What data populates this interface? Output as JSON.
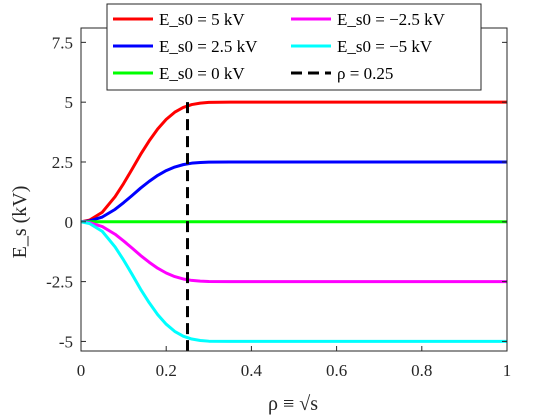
{
  "chart_data": {
    "type": "line",
    "xlabel": "ρ ≡ √s",
    "ylabel": "E_s (kV)",
    "xlim": [
      0,
      1
    ],
    "ylim": [
      -5.4,
      8.1
    ],
    "xticks": [
      0,
      0.2,
      0.4,
      0.6,
      0.8,
      1
    ],
    "xtick_labels": [
      "0",
      "0.2",
      "0.4",
      "0.6",
      "0.8",
      "1"
    ],
    "yticks": [
      -5,
      -2.5,
      0,
      2.5,
      5,
      7.5
    ],
    "ytick_labels": [
      "-5",
      "-2.5",
      "0",
      "2.5",
      "5",
      "7.5"
    ],
    "grid": false,
    "legend_placement": "top",
    "series": [
      {
        "name": "E_s0 = 5 kV",
        "color": "#ff0000",
        "values": [
          [
            0,
            0
          ],
          [
            0.02,
            0.07
          ],
          [
            0.05,
            0.4
          ],
          [
            0.08,
            1.05
          ],
          [
            0.1,
            1.6
          ],
          [
            0.12,
            2.2
          ],
          [
            0.14,
            2.82
          ],
          [
            0.16,
            3.38
          ],
          [
            0.18,
            3.88
          ],
          [
            0.2,
            4.28
          ],
          [
            0.22,
            4.58
          ],
          [
            0.24,
            4.78
          ],
          [
            0.26,
            4.9
          ],
          [
            0.28,
            4.96
          ],
          [
            0.3,
            4.99
          ],
          [
            0.35,
            5
          ],
          [
            1,
            5
          ]
        ]
      },
      {
        "name": "E_s0 = 2.5 kV",
        "color": "#0000ff",
        "values": [
          [
            0,
            0
          ],
          [
            0.02,
            0.035
          ],
          [
            0.05,
            0.2
          ],
          [
            0.08,
            0.52
          ],
          [
            0.1,
            0.8
          ],
          [
            0.12,
            1.1
          ],
          [
            0.14,
            1.41
          ],
          [
            0.16,
            1.69
          ],
          [
            0.18,
            1.94
          ],
          [
            0.2,
            2.14
          ],
          [
            0.22,
            2.29
          ],
          [
            0.24,
            2.39
          ],
          [
            0.26,
            2.45
          ],
          [
            0.28,
            2.48
          ],
          [
            0.3,
            2.495
          ],
          [
            0.35,
            2.5
          ],
          [
            1,
            2.5
          ]
        ]
      },
      {
        "name": "E_s0 = 0 kV",
        "color": "#00ff00",
        "values": [
          [
            0,
            0
          ],
          [
            1,
            0
          ]
        ]
      },
      {
        "name": "E_s0 = −2.5 kV",
        "color": "#ff00ff",
        "values": [
          [
            0,
            0
          ],
          [
            0.02,
            -0.035
          ],
          [
            0.05,
            -0.2
          ],
          [
            0.08,
            -0.52
          ],
          [
            0.1,
            -0.8
          ],
          [
            0.12,
            -1.1
          ],
          [
            0.14,
            -1.41
          ],
          [
            0.16,
            -1.69
          ],
          [
            0.18,
            -1.94
          ],
          [
            0.2,
            -2.14
          ],
          [
            0.22,
            -2.29
          ],
          [
            0.24,
            -2.39
          ],
          [
            0.26,
            -2.45
          ],
          [
            0.28,
            -2.48
          ],
          [
            0.3,
            -2.495
          ],
          [
            0.35,
            -2.5
          ],
          [
            1,
            -2.5
          ]
        ]
      },
      {
        "name": "E_s0 = −5 kV",
        "color": "#00ffff",
        "values": [
          [
            0,
            0
          ],
          [
            0.02,
            -0.07
          ],
          [
            0.05,
            -0.4
          ],
          [
            0.08,
            -1.05
          ],
          [
            0.1,
            -1.6
          ],
          [
            0.12,
            -2.2
          ],
          [
            0.14,
            -2.82
          ],
          [
            0.16,
            -3.38
          ],
          [
            0.18,
            -3.88
          ],
          [
            0.2,
            -4.28
          ],
          [
            0.22,
            -4.58
          ],
          [
            0.24,
            -4.78
          ],
          [
            0.26,
            -4.9
          ],
          [
            0.28,
            -4.96
          ],
          [
            0.3,
            -4.99
          ],
          [
            0.35,
            -5
          ],
          [
            1,
            -5
          ]
        ]
      }
    ],
    "reference_line": {
      "name": "ρ = 0.25",
      "x": 0.25,
      "color": "#000000",
      "style": "dashed"
    },
    "legend": [
      {
        "label": "E_s0 = 5 kV",
        "color": "#ff0000",
        "style": "solid",
        "col": 0,
        "row": 0
      },
      {
        "label": "E_s0 = 2.5 kV",
        "color": "#0000ff",
        "style": "solid",
        "col": 0,
        "row": 1
      },
      {
        "label": "E_s0 = 0 kV",
        "color": "#00ff00",
        "style": "solid",
        "col": 0,
        "row": 2
      },
      {
        "label": "E_s0 = −2.5 kV",
        "color": "#ff00ff",
        "style": "solid",
        "col": 1,
        "row": 0
      },
      {
        "label": "E_s0 = −5 kV",
        "color": "#00ffff",
        "style": "solid",
        "col": 1,
        "row": 1
      },
      {
        "label": "ρ = 0.25",
        "color": "#000000",
        "style": "dashed",
        "col": 1,
        "row": 2
      }
    ]
  }
}
